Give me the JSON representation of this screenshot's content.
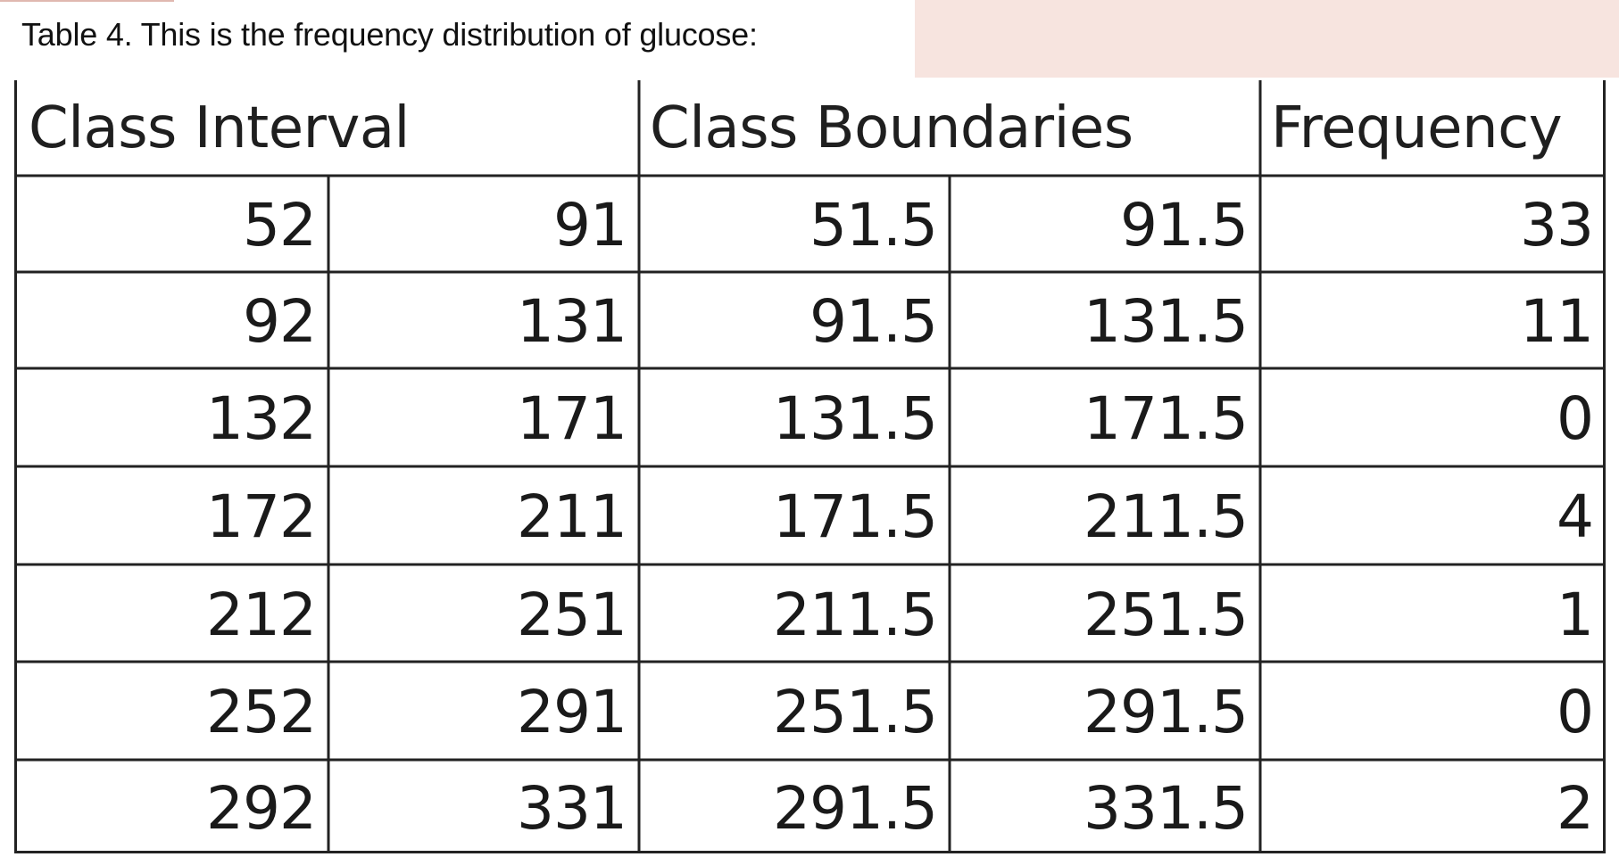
{
  "caption": "Table 4. This is the frequency distribution of glucose:",
  "table": {
    "headers": {
      "class_interval": "Class Interval",
      "class_boundaries": "Class Boundaries",
      "frequency": "Frequency"
    },
    "rows": [
      [
        "52",
        "91",
        "51.5",
        "91.5",
        "33"
      ],
      [
        "92",
        "131",
        "91.5",
        "131.5",
        "11"
      ],
      [
        "132",
        "171",
        "131.5",
        "171.5",
        "0"
      ],
      [
        "172",
        "211",
        "171.5",
        "211.5",
        "4"
      ],
      [
        "212",
        "251",
        "211.5",
        "251.5",
        "1"
      ],
      [
        "252",
        "291",
        "251.5",
        "291.5",
        "0"
      ],
      [
        "292",
        "331",
        "291.5",
        "331.5",
        "2"
      ]
    ]
  },
  "colors": {
    "grid_line": "#222222",
    "text": "#1a1a1a",
    "pink_panel": "#f7e4df"
  }
}
